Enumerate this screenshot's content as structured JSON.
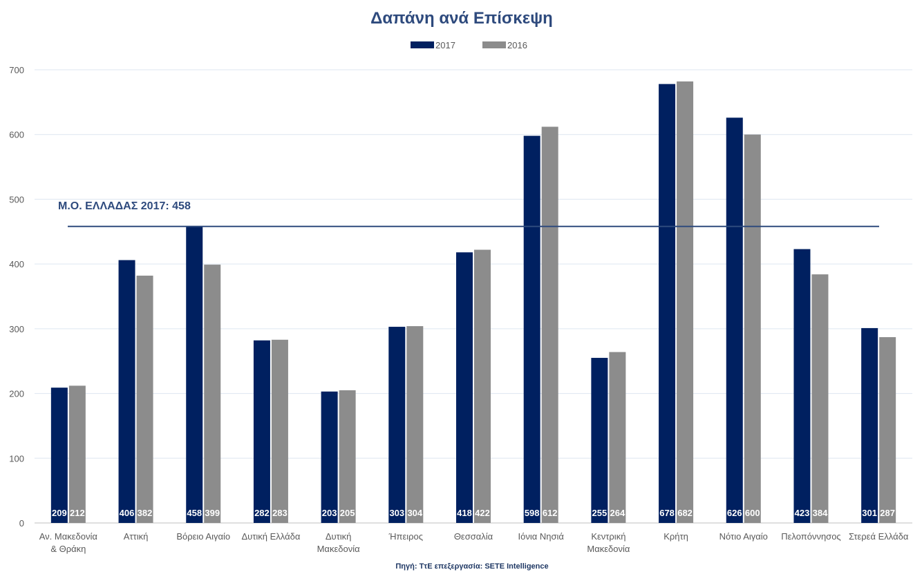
{
  "chart_data": {
    "type": "bar",
    "title": "Δαπάνη ανά Επίσκεψη",
    "xlabel": "",
    "ylabel": "",
    "ylim": [
      0,
      700
    ],
    "yticks": [
      0,
      100,
      200,
      300,
      400,
      500,
      600,
      700
    ],
    "grid": true,
    "legend_position": "top",
    "categories": [
      [
        "Αν. Μακεδονία",
        "& Θράκη"
      ],
      [
        "Αττική"
      ],
      [
        "Βόρειο Αιγαίο"
      ],
      [
        "Δυτική Ελλάδα"
      ],
      [
        "Δυτική",
        "Μακεδονία"
      ],
      [
        "Ήπειρος"
      ],
      [
        "Θεσσαλία"
      ],
      [
        "Ιόνια Νησιά"
      ],
      [
        "Κεντρική",
        "Μακεδονία"
      ],
      [
        "Κρήτη"
      ],
      [
        "Νότιο Αιγαίο"
      ],
      [
        "Πελοπόννησος"
      ],
      [
        "Στερεά Ελλάδα"
      ]
    ],
    "series": [
      {
        "name": "2017",
        "color": "#002060",
        "values": [
          209,
          406,
          458,
          282,
          203,
          303,
          418,
          598,
          255,
          678,
          626,
          423,
          301
        ]
      },
      {
        "name": "2016",
        "color": "#8c8c8c",
        "values": [
          212,
          382,
          399,
          283,
          205,
          304,
          422,
          612,
          264,
          682,
          600,
          384,
          287
        ]
      }
    ],
    "reference_line": {
      "value": 458,
      "label": "Μ.Ο. ΕΛΛΑΔΑΣ 2017: 458",
      "color": "#2e4a7d"
    },
    "annotations": {
      "source": "Πηγή: ΤτΕ επεξεργασία: SETE Intelligence"
    },
    "colors": {
      "title": "#2e4a7d",
      "grid": "#dde6f0",
      "axis": "#bfbfbf",
      "text": "#595959"
    }
  }
}
